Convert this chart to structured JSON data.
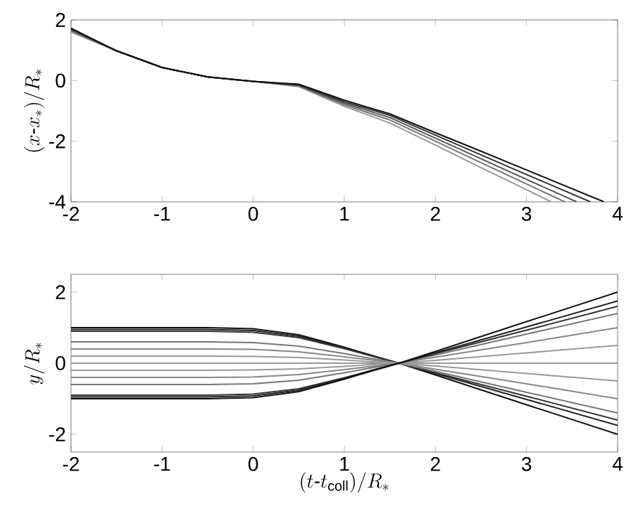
{
  "chart_data": [
    {
      "type": "line",
      "ylabel": "(x\\mbox{-}x_*)/R_*",
      "xlim": [
        -2,
        4
      ],
      "ylim": [
        -4,
        2
      ],
      "xticks": [
        -2,
        -1,
        0,
        1,
        2,
        3,
        4
      ],
      "yticks": [
        -4,
        -2,
        0,
        2
      ],
      "series": [
        {
          "color": "#9a9a9a",
          "x": [
            -2,
            -1.5,
            -1,
            -0.5,
            0,
            0.5,
            1,
            1.5,
            2,
            2.5,
            3,
            3.27
          ],
          "values": [
            1.6,
            0.98,
            0.43,
            0.12,
            -0.03,
            -0.2,
            -0.85,
            -1.4,
            -2.13,
            -2.87,
            -3.6,
            -4
          ]
        },
        {
          "color": "#777777",
          "x": [
            -2,
            -1.5,
            -1,
            -0.5,
            0,
            0.5,
            1,
            1.5,
            2,
            2.5,
            3,
            3.42
          ],
          "values": [
            1.64,
            0.98,
            0.43,
            0.12,
            -0.03,
            -0.18,
            -0.8,
            -1.3,
            -2.0,
            -2.71,
            -3.41,
            -4
          ]
        },
        {
          "color": "#555555",
          "x": [
            -2,
            -1.5,
            -1,
            -0.5,
            0,
            0.5,
            1,
            1.5,
            2,
            2.5,
            3,
            3.55
          ],
          "values": [
            1.67,
            0.98,
            0.43,
            0.12,
            -0.03,
            -0.16,
            -0.75,
            -1.22,
            -1.9,
            -2.58,
            -3.26,
            -4
          ]
        },
        {
          "color": "#333333",
          "x": [
            -2,
            -1.5,
            -1,
            -0.5,
            0,
            0.5,
            1,
            1.5,
            2,
            2.5,
            3,
            3.7
          ],
          "values": [
            1.7,
            0.98,
            0.43,
            0.12,
            -0.03,
            -0.14,
            -0.7,
            -1.15,
            -1.8,
            -2.45,
            -3.1,
            -4
          ]
        },
        {
          "color": "#111111",
          "x": [
            -2,
            -1.5,
            -1,
            -0.5,
            0,
            0.5,
            1,
            1.5,
            2,
            2.5,
            3,
            3.85
          ],
          "values": [
            1.73,
            0.98,
            0.43,
            0.12,
            -0.03,
            -0.12,
            -0.65,
            -1.1,
            -1.72,
            -2.33,
            -2.95,
            -4
          ]
        }
      ]
    },
    {
      "type": "line",
      "xlabel": "(t\\mbox{-}t_{\\mathrm{coll}})/R_*",
      "ylabel": "y/R_*",
      "xlim": [
        -2,
        4
      ],
      "ylim": [
        -2.5,
        2.5
      ],
      "xticks": [
        -2,
        -1,
        0,
        1,
        2,
        3,
        4
      ],
      "yticks": [
        -2,
        0,
        2
      ],
      "x": [
        -2,
        -1,
        -0.5,
        0,
        0.5,
        1,
        1.3,
        1.6,
        2,
        3,
        4
      ],
      "series": [
        {
          "color": "#111111",
          "values": [
            1,
            1,
            1,
            0.97,
            0.8,
            0.45,
            0.22,
            0,
            -0.33,
            -1.17,
            -2
          ]
        },
        {
          "color": "#222222",
          "values": [
            0.95,
            0.95,
            0.95,
            0.92,
            0.76,
            0.43,
            0.21,
            0,
            -0.29,
            -1.02,
            -1.75
          ]
        },
        {
          "color": "#333333",
          "values": [
            0.9,
            0.9,
            0.9,
            0.87,
            0.72,
            0.41,
            0.2,
            0,
            -0.27,
            -0.93,
            -1.6
          ]
        },
        {
          "color": "#777777",
          "values": [
            0.6,
            0.6,
            0.6,
            0.58,
            0.48,
            0.27,
            0.13,
            0,
            -0.23,
            -0.82,
            -1.4
          ]
        },
        {
          "color": "#888888",
          "values": [
            0.4,
            0.4,
            0.4,
            0.39,
            0.32,
            0.18,
            0.09,
            0,
            -0.17,
            -0.58,
            -1
          ]
        },
        {
          "color": "#999999",
          "values": [
            0.2,
            0.2,
            0.2,
            0.19,
            0.16,
            0.09,
            0.04,
            0,
            -0.08,
            -0.29,
            -0.5
          ]
        },
        {
          "color": "#999999",
          "values": [
            0,
            0,
            0,
            0,
            0,
            0,
            0,
            0,
            0,
            0,
            0
          ]
        },
        {
          "color": "#999999",
          "values": [
            -0.2,
            -0.2,
            -0.2,
            -0.19,
            -0.16,
            -0.09,
            -0.04,
            0,
            0.08,
            0.29,
            0.5
          ]
        },
        {
          "color": "#888888",
          "values": [
            -0.4,
            -0.4,
            -0.4,
            -0.39,
            -0.32,
            -0.18,
            -0.09,
            0,
            0.17,
            0.58,
            1
          ]
        },
        {
          "color": "#777777",
          "values": [
            -0.6,
            -0.6,
            -0.6,
            -0.58,
            -0.48,
            -0.27,
            -0.13,
            0,
            0.23,
            0.82,
            1.4
          ]
        },
        {
          "color": "#333333",
          "values": [
            -0.9,
            -0.9,
            -0.9,
            -0.87,
            -0.72,
            -0.41,
            -0.2,
            0,
            0.27,
            0.93,
            1.6
          ]
        },
        {
          "color": "#222222",
          "values": [
            -0.95,
            -0.95,
            -0.95,
            -0.92,
            -0.76,
            -0.43,
            -0.21,
            0,
            0.29,
            1.02,
            1.75
          ]
        },
        {
          "color": "#111111",
          "values": [
            -1,
            -1,
            -1,
            -0.97,
            -0.8,
            -0.45,
            -0.22,
            0,
            0.33,
            1.17,
            2
          ]
        }
      ]
    }
  ]
}
